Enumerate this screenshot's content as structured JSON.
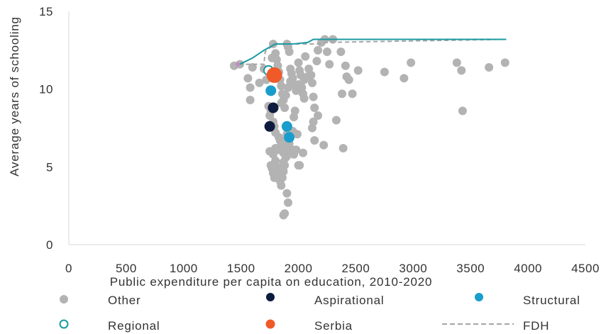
{
  "chart_data": {
    "type": "scatter",
    "xlabel": "Public expenditure per capita on education, 2010-2020",
    "ylabel": "Average years of schooling",
    "xlim": [
      0,
      4500
    ],
    "ylim": [
      0,
      15
    ],
    "x_ticks": [
      0,
      500,
      1000,
      1500,
      2000,
      2500,
      3000,
      3500,
      4000,
      4500
    ],
    "y_ticks": [
      0,
      5,
      10,
      15
    ],
    "grid": false,
    "legend_placement": "bottom",
    "series": [
      {
        "name": "Other",
        "color": "#b3b3b3",
        "marker": "filled-circle",
        "points": [
          [
            1440,
            11.5
          ],
          [
            1490,
            11.6
          ],
          [
            1560,
            10.7
          ],
          [
            1580,
            10.1
          ],
          [
            1580,
            9.3
          ],
          [
            1600,
            11.4
          ],
          [
            1660,
            10.4
          ],
          [
            1700,
            11.3
          ],
          [
            1720,
            10.6
          ],
          [
            1740,
            8.9
          ],
          [
            1760,
            8.6
          ],
          [
            1770,
            12.0
          ],
          [
            1780,
            12.9
          ],
          [
            1800,
            12.3
          ],
          [
            1810,
            11.9
          ],
          [
            1820,
            11.5
          ],
          [
            1830,
            11.1
          ],
          [
            1840,
            10.6
          ],
          [
            1850,
            10.2
          ],
          [
            1860,
            9.7
          ],
          [
            1870,
            9.3
          ],
          [
            1880,
            8.8
          ],
          [
            1900,
            12.9
          ],
          [
            1910,
            12.7
          ],
          [
            1920,
            12.4
          ],
          [
            1930,
            11.3
          ],
          [
            1940,
            11.0
          ],
          [
            1950,
            10.7
          ],
          [
            1960,
            10.3
          ],
          [
            1980,
            9.9
          ],
          [
            2000,
            11.7
          ],
          [
            2010,
            11.2
          ],
          [
            2020,
            10.9
          ],
          [
            2030,
            10.1
          ],
          [
            2040,
            9.7
          ],
          [
            2050,
            9.4
          ],
          [
            2060,
            12.1
          ],
          [
            2090,
            11.3
          ],
          [
            2110,
            10.9
          ],
          [
            2120,
            10.4
          ],
          [
            2130,
            9.5
          ],
          [
            2140,
            8.8
          ],
          [
            2160,
            11.8
          ],
          [
            2170,
            12.5
          ],
          [
            2200,
            13.0
          ],
          [
            2230,
            13.2
          ],
          [
            2250,
            12.4
          ],
          [
            2270,
            11.6
          ],
          [
            2300,
            13.2
          ],
          [
            2330,
            8.0
          ],
          [
            2370,
            12.4
          ],
          [
            2380,
            9.7
          ],
          [
            2390,
            6.2
          ],
          [
            2410,
            11.5
          ],
          [
            2420,
            10.8
          ],
          [
            2440,
            10.6
          ],
          [
            2470,
            9.7
          ],
          [
            2520,
            11.2
          ],
          [
            2750,
            11.1
          ],
          [
            2920,
            10.7
          ],
          [
            2980,
            11.7
          ],
          [
            3380,
            11.7
          ],
          [
            3420,
            11.2
          ],
          [
            3430,
            8.6
          ],
          [
            3660,
            11.4
          ],
          [
            3800,
            11.7
          ],
          [
            1750,
            8.3
          ],
          [
            1780,
            7.9
          ],
          [
            1790,
            7.6
          ],
          [
            1800,
            7.2
          ],
          [
            1830,
            6.9
          ],
          [
            1840,
            6.7
          ],
          [
            1850,
            6.4
          ],
          [
            1860,
            6.1
          ],
          [
            1870,
            5.9
          ],
          [
            1880,
            6.3
          ],
          [
            1890,
            6.7
          ],
          [
            1900,
            7.1
          ],
          [
            1920,
            6.5
          ],
          [
            1930,
            6.0
          ],
          [
            1950,
            7.3
          ],
          [
            1960,
            8.2
          ],
          [
            1970,
            8.6
          ],
          [
            1990,
            7.1
          ],
          [
            1900,
            5.7
          ],
          [
            1980,
            6.1
          ],
          [
            2000,
            5.1
          ],
          [
            2010,
            5.1
          ],
          [
            2040,
            5.9
          ],
          [
            2120,
            7.5
          ],
          [
            2130,
            7.9
          ],
          [
            2140,
            6.7
          ],
          [
            2170,
            8.3
          ],
          [
            2220,
            6.4
          ],
          [
            1750,
            6.0
          ],
          [
            1760,
            5.1
          ],
          [
            1770,
            4.9
          ],
          [
            1780,
            4.6
          ],
          [
            1790,
            4.3
          ],
          [
            1800,
            5.4
          ],
          [
            1810,
            5.0
          ],
          [
            1820,
            4.8
          ],
          [
            1830,
            4.5
          ],
          [
            1840,
            4.1
          ],
          [
            1850,
            3.8
          ],
          [
            1860,
            4.3
          ],
          [
            1870,
            4.7
          ],
          [
            1880,
            5.1
          ],
          [
            1890,
            5.6
          ],
          [
            1900,
            3.3
          ],
          [
            1910,
            2.7
          ],
          [
            1870,
            1.9
          ],
          [
            1880,
            2.0
          ],
          [
            1830,
            6.1
          ],
          [
            1870,
            5.3
          ],
          [
            1950,
            6.1
          ],
          [
            1960,
            5.8
          ],
          [
            1780,
            5.8
          ],
          [
            1800,
            6.2
          ],
          [
            1850,
            9.1
          ],
          [
            1890,
            9.6
          ],
          [
            1910,
            10.1
          ],
          [
            1930,
            10.5
          ],
          [
            2000,
            10.3
          ],
          [
            2050,
            10.6
          ],
          [
            2080,
            10.8
          ]
        ]
      },
      {
        "name": "Aspirational",
        "color": "#0d1b3e",
        "marker": "filled-circle",
        "points": [
          [
            1780,
            8.8
          ],
          [
            1750,
            7.6
          ]
        ]
      },
      {
        "name": "Structural",
        "color": "#1a9dcc",
        "marker": "filled-circle",
        "points": [
          [
            1760,
            9.9
          ],
          [
            1900,
            7.6
          ],
          [
            1920,
            6.9
          ]
        ]
      },
      {
        "name": "Regional",
        "color": "#1a9aa0",
        "marker": "open-circle",
        "points": [
          [
            1740,
            11.2
          ]
        ]
      },
      {
        "name": "Serbia",
        "color": "#f05a28",
        "marker": "filled-circle-large",
        "points": [
          [
            1790,
            10.9
          ]
        ]
      },
      {
        "name": "FDH",
        "color": "#a6a6a6",
        "marker": "dashed-line",
        "points": [
          [
            1480,
            11.6
          ],
          [
            1610,
            11.6
          ],
          [
            1700,
            11.6
          ],
          [
            1710,
            12.4
          ],
          [
            1790,
            12.9
          ],
          [
            1870,
            12.9
          ],
          [
            2170,
            12.9
          ],
          [
            2220,
            13.0
          ],
          [
            3810,
            13.2
          ]
        ]
      }
    ],
    "frontier_line": {
      "color": "#1a9aa0",
      "points": [
        [
          1490,
          11.6
        ],
        [
          1600,
          12.0
        ],
        [
          1700,
          12.5
        ],
        [
          1800,
          12.9
        ],
        [
          1950,
          12.9
        ],
        [
          2080,
          13.0
        ],
        [
          2130,
          13.2
        ],
        [
          3810,
          13.2
        ]
      ]
    },
    "accent_point": {
      "color": "#c58ac3",
      "point": [
        1490,
        11.6
      ]
    }
  }
}
